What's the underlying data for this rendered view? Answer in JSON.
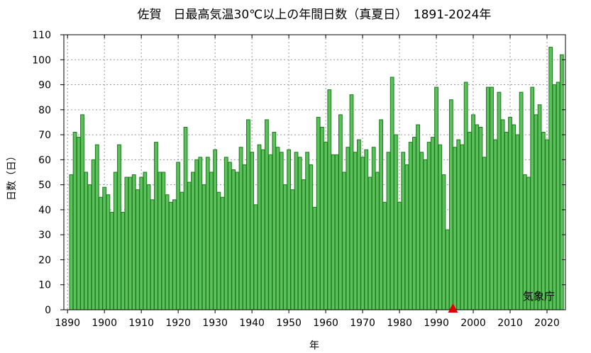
{
  "colors": {
    "bar_fill": "#5cc05c",
    "bar_stroke": "#1a7a1a",
    "marker": "#e00000",
    "grid": "#9a9a9a"
  },
  "credit": "気象庁",
  "chart_data": {
    "type": "bar",
    "title": "佐賀　日最高気温30℃以上の年間日数（真夏日）　1891-2024年",
    "xlabel": "年",
    "ylabel": "日数（日）",
    "xlim": [
      1889,
      2025
    ],
    "ylim": [
      0,
      110
    ],
    "grid": true,
    "x_ticks": [
      1890,
      1900,
      1910,
      1920,
      1930,
      1940,
      1950,
      1960,
      1970,
      1980,
      1990,
      2000,
      2010,
      2020
    ],
    "y_ticks": [
      0,
      10,
      20,
      30,
      40,
      50,
      60,
      70,
      80,
      90,
      100,
      110
    ],
    "marker": {
      "type": "triangle",
      "x": 1994.5,
      "y": 0
    },
    "x": [
      1891,
      1892,
      1893,
      1894,
      1895,
      1896,
      1897,
      1898,
      1899,
      1900,
      1901,
      1902,
      1903,
      1904,
      1905,
      1906,
      1907,
      1908,
      1909,
      1910,
      1911,
      1912,
      1913,
      1914,
      1915,
      1916,
      1917,
      1918,
      1919,
      1920,
      1921,
      1922,
      1923,
      1924,
      1925,
      1926,
      1927,
      1928,
      1929,
      1930,
      1931,
      1932,
      1933,
      1934,
      1935,
      1936,
      1937,
      1938,
      1939,
      1940,
      1941,
      1942,
      1943,
      1944,
      1945,
      1946,
      1947,
      1948,
      1949,
      1950,
      1951,
      1952,
      1953,
      1954,
      1955,
      1956,
      1957,
      1958,
      1959,
      1960,
      1961,
      1962,
      1963,
      1964,
      1965,
      1966,
      1967,
      1968,
      1969,
      1970,
      1971,
      1972,
      1973,
      1974,
      1975,
      1976,
      1977,
      1978,
      1979,
      1980,
      1981,
      1982,
      1983,
      1984,
      1985,
      1986,
      1987,
      1988,
      1989,
      1990,
      1991,
      1992,
      1993,
      1994,
      1995,
      1996,
      1997,
      1998,
      1999,
      2000,
      2001,
      2002,
      2003,
      2004,
      2005,
      2006,
      2007,
      2008,
      2009,
      2010,
      2011,
      2012,
      2013,
      2014,
      2015,
      2016,
      2017,
      2018,
      2019,
      2020,
      2021,
      2022,
      2023,
      2024
    ],
    "values": [
      54,
      71,
      69,
      78,
      55,
      50,
      60,
      66,
      45,
      49,
      46,
      39,
      55,
      66,
      39,
      53,
      53,
      54,
      48,
      53,
      55,
      50,
      44,
      67,
      55,
      55,
      46,
      43,
      44,
      59,
      47,
      73,
      51,
      55,
      60,
      61,
      50,
      61,
      55,
      64,
      47,
      45,
      61,
      59,
      56,
      55,
      65,
      58,
      76,
      63,
      42,
      66,
      64,
      76,
      62,
      71,
      65,
      63,
      50,
      64,
      48,
      63,
      61,
      52,
      63,
      58,
      41,
      77,
      73,
      67,
      88,
      62,
      62,
      78,
      55,
      65,
      86,
      63,
      68,
      61,
      64,
      53,
      65,
      55,
      76,
      43,
      63,
      93,
      70,
      43,
      63,
      58,
      67,
      69,
      74,
      63,
      60,
      67,
      69,
      89,
      66,
      54,
      32,
      84,
      65,
      68,
      66,
      91,
      71,
      78,
      74,
      73,
      61,
      89,
      89,
      68,
      87,
      76,
      71,
      77,
      74,
      70,
      87,
      54,
      53,
      89,
      78,
      82,
      71,
      68,
      105,
      90,
      91,
      102
    ]
  }
}
